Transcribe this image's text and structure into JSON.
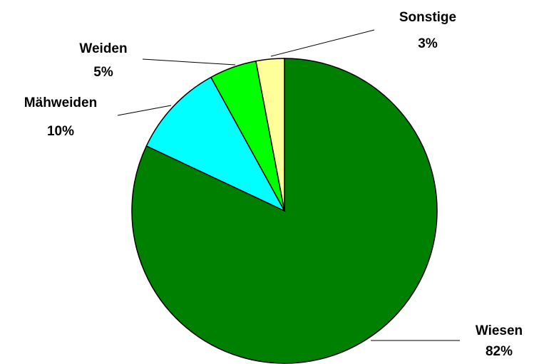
{
  "chart_data": {
    "type": "pie",
    "categories": [
      "Wiesen",
      "Mähweiden",
      "Weiden",
      "Sonstige"
    ],
    "values": [
      82,
      10,
      5,
      3
    ],
    "value_labels": [
      "82%",
      "10%",
      "5%",
      "3%"
    ],
    "colors": [
      "#008000",
      "#00ffff",
      "#00ff00",
      "#ffff99"
    ]
  }
}
